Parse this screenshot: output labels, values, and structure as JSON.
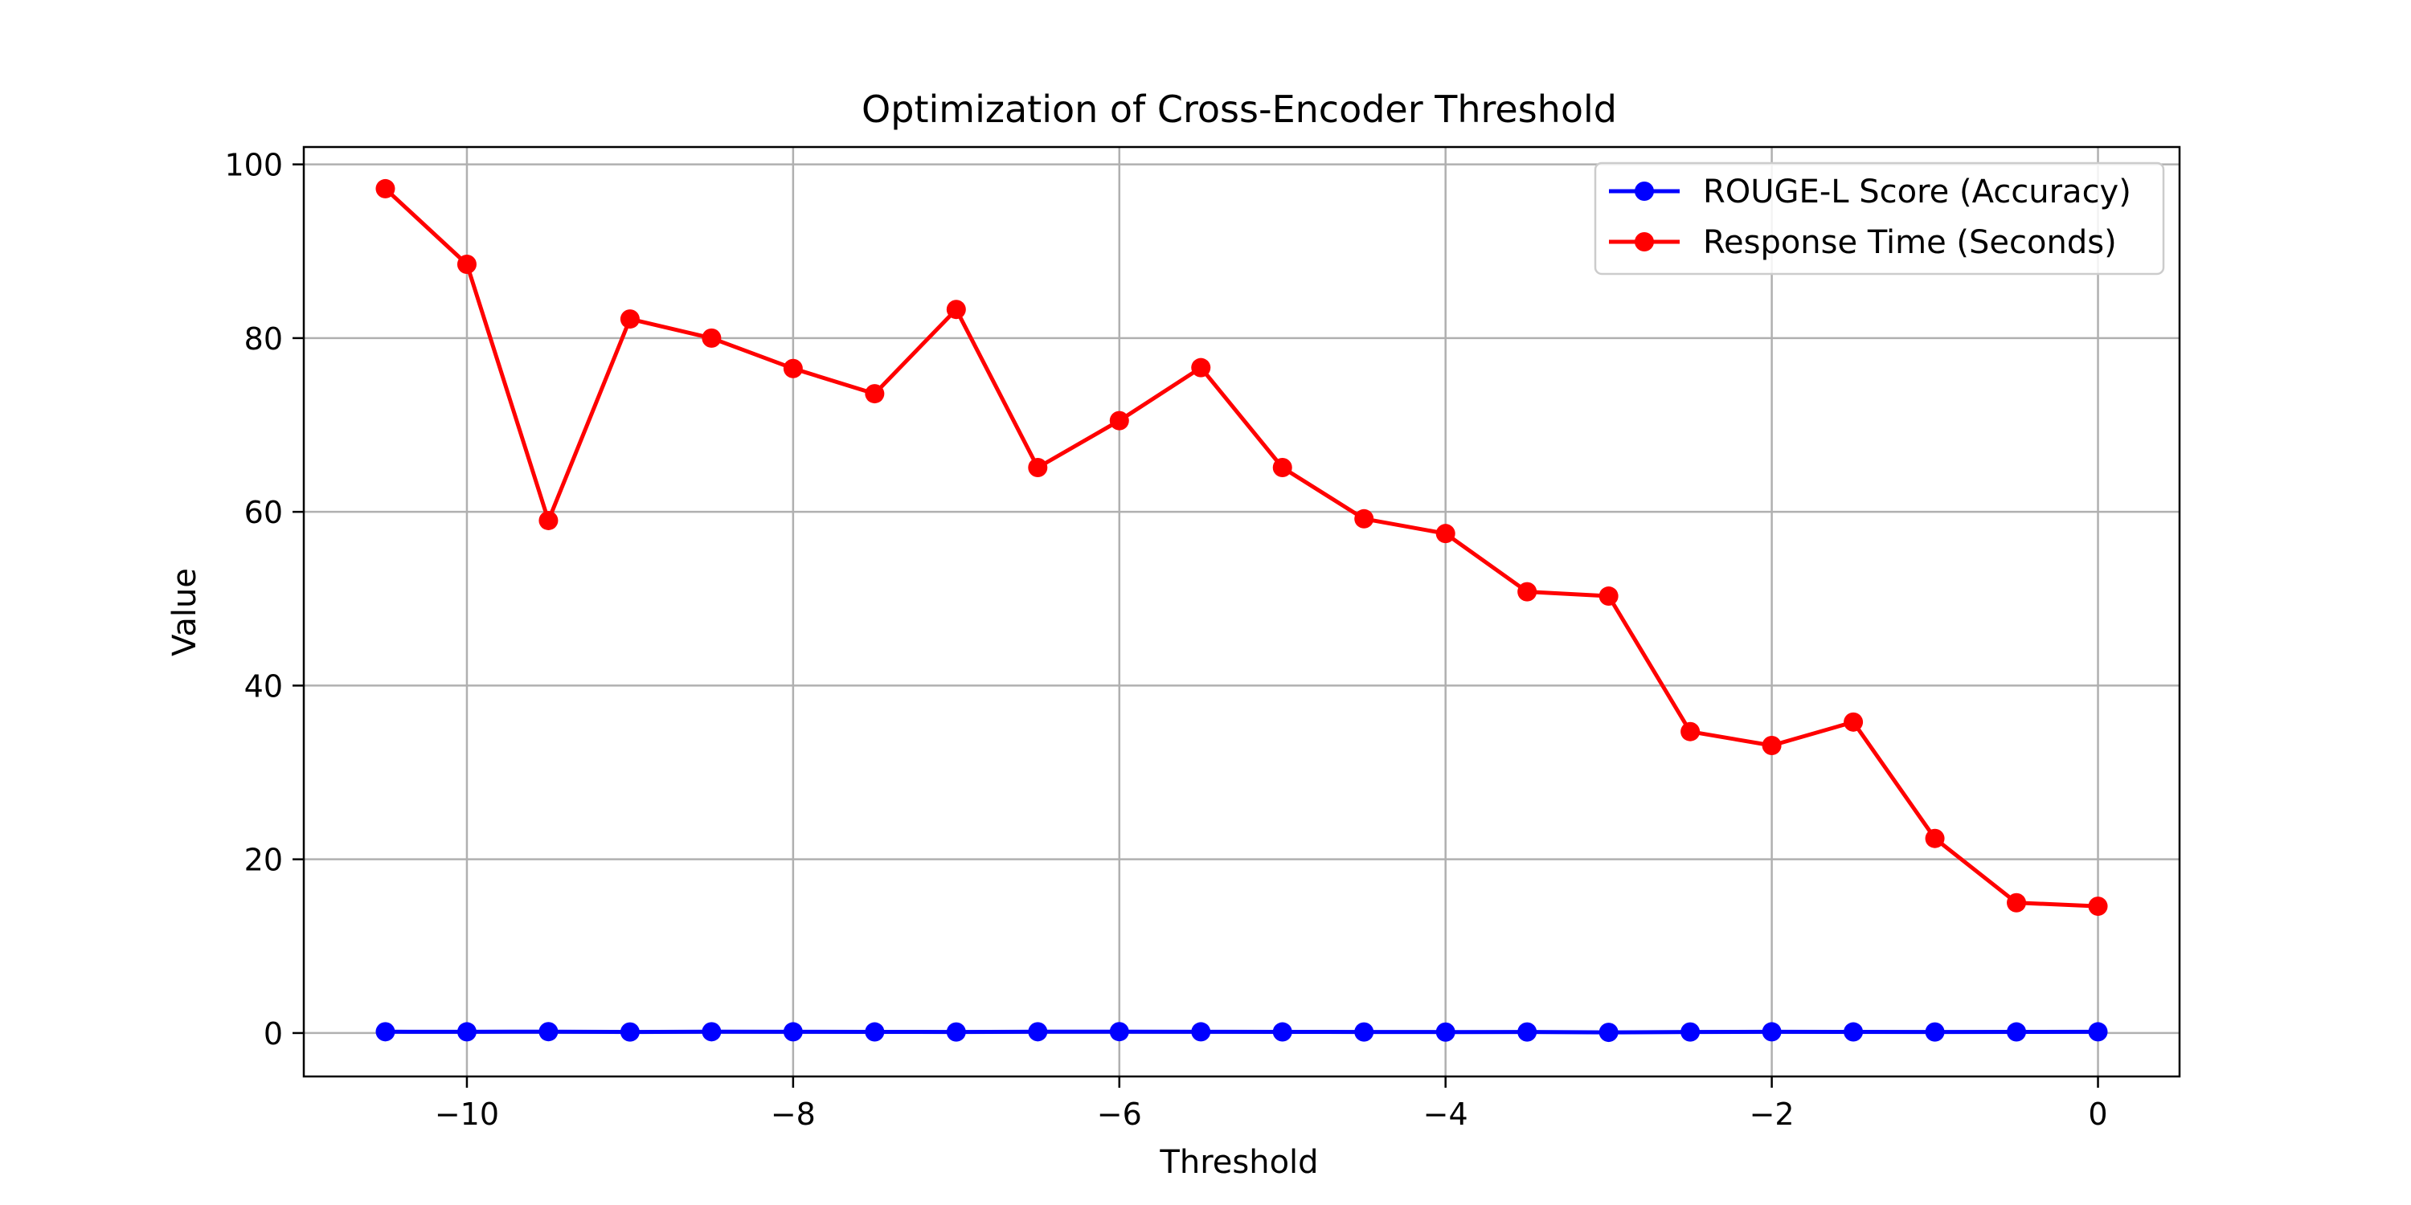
{
  "chart_data": {
    "type": "line",
    "title": "Optimization of Cross-Encoder Threshold",
    "xlabel": "Threshold",
    "ylabel": "Value",
    "xlim": [
      -11.0,
      0.5
    ],
    "ylim": [
      -5,
      102
    ],
    "xticks": [
      -10,
      -8,
      -6,
      -4,
      -2,
      0
    ],
    "xtick_labels": [
      "−10",
      "−8",
      "−6",
      "−4",
      "−2",
      "0"
    ],
    "yticks": [
      0,
      20,
      40,
      60,
      80,
      100
    ],
    "ytick_labels": [
      "0",
      "20",
      "40",
      "60",
      "80",
      "100"
    ],
    "grid": true,
    "legend_position": "top-right",
    "x": [
      -10.5,
      -10.0,
      -9.5,
      -9.0,
      -8.5,
      -8.0,
      -7.5,
      -7.0,
      -6.5,
      -6.0,
      -5.5,
      -5.0,
      -4.5,
      -4.0,
      -3.5,
      -3.0,
      -2.5,
      -2.0,
      -1.5,
      -1.0,
      -0.5,
      0.0
    ],
    "series": [
      {
        "name": "ROUGE-L Score (Accuracy)",
        "color": "#0000ff",
        "values": [
          0.15,
          0.14,
          0.16,
          0.12,
          0.15,
          0.14,
          0.13,
          0.12,
          0.15,
          0.16,
          0.14,
          0.13,
          0.12,
          0.11,
          0.12,
          0.08,
          0.12,
          0.14,
          0.13,
          0.12,
          0.13,
          0.14
        ]
      },
      {
        "name": "Response Time (Seconds)",
        "color": "#ff0000",
        "values": [
          97.2,
          88.5,
          59.0,
          82.2,
          80.0,
          76.5,
          73.6,
          83.3,
          65.1,
          70.5,
          76.6,
          65.1,
          59.2,
          57.5,
          50.8,
          50.3,
          34.7,
          33.1,
          35.8,
          22.4,
          15.0,
          14.6
        ]
      }
    ]
  }
}
